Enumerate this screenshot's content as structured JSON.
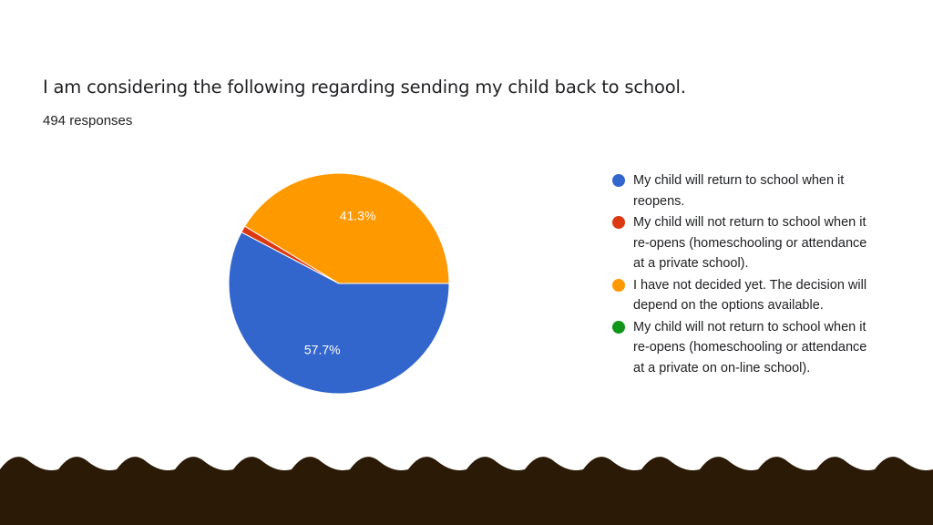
{
  "title": "I am considering the following regarding sending my child back to school.",
  "subtitle": "494 responses",
  "colors": {
    "blue": "#3366cc",
    "red": "#dc3912",
    "orange": "#ff9900",
    "green": "#109618",
    "wave": "#2b1a06"
  },
  "chart_data": {
    "type": "pie",
    "title": "I am considering the following regarding sending my child back to school.",
    "subtitle": "494 responses",
    "legend_position": "right",
    "slices": [
      {
        "label_lines": [
          "My child will return to school when it",
          "reopens."
        ],
        "percent": 57.7,
        "display": "57.7%",
        "color": "#3366cc"
      },
      {
        "label_lines": [
          "My child will not return to school when it",
          "re-opens (homeschooling or attendance",
          "at a private school)."
        ],
        "percent": 1.0,
        "display": "",
        "color": "#dc3912"
      },
      {
        "label_lines": [
          "I have not decided yet. The decision will",
          "depend on the options available."
        ],
        "percent": 41.3,
        "display": "41.3%",
        "color": "#ff9900"
      },
      {
        "label_lines": [
          "My child will not return to school when it",
          "re-opens (homeschooling or attendance",
          "at a private on on-line school)."
        ],
        "percent": 0,
        "display": "",
        "color": "#109618"
      }
    ]
  }
}
